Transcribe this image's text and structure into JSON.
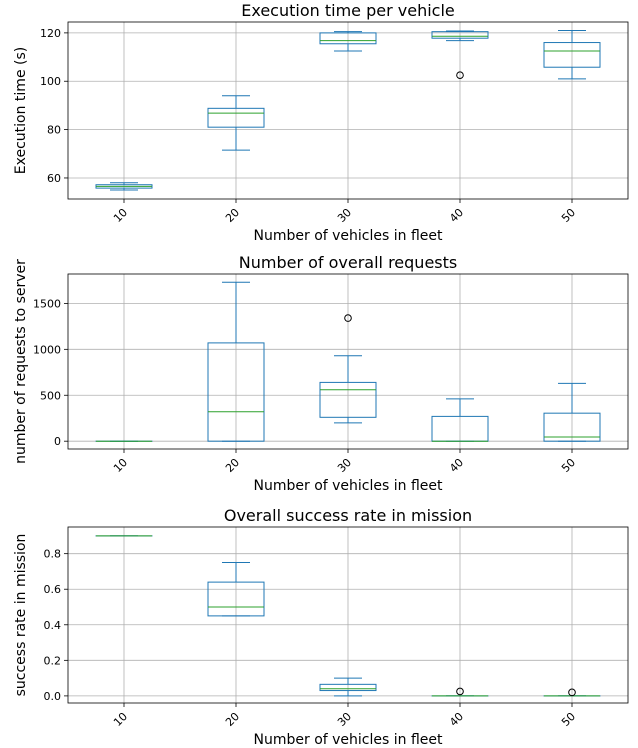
{
  "chart_data": [
    {
      "type": "box",
      "title": "Execution time per vehicle",
      "xlabel": "Number of vehicles in fleet",
      "ylabel": "Execution time (s)",
      "ylim": [
        51.3,
        124.5
      ],
      "yticks": [
        60,
        80,
        100,
        120
      ],
      "yticklabels": [
        "60",
        "80",
        "100",
        "120"
      ],
      "categories": [
        "10",
        "20",
        "30",
        "40",
        "50"
      ],
      "grid": true,
      "boxes": [
        {
          "whislo": 55.0,
          "q1": 55.8,
          "med": 56.5,
          "q3": 57.2,
          "whishi": 58.0,
          "fliers": []
        },
        {
          "whislo": 71.5,
          "q1": 81.0,
          "med": 86.8,
          "q3": 88.8,
          "whishi": 94.0,
          "fliers": []
        },
        {
          "whislo": 112.5,
          "q1": 115.5,
          "med": 116.8,
          "q3": 120.0,
          "whishi": 120.5,
          "fliers": []
        },
        {
          "whislo": 116.8,
          "q1": 117.8,
          "med": 118.6,
          "q3": 120.5,
          "whishi": 120.8,
          "fliers": [
            102.5
          ]
        },
        {
          "whislo": 101.0,
          "q1": 105.8,
          "med": 112.5,
          "q3": 116.0,
          "whishi": 121.0,
          "fliers": []
        }
      ]
    },
    {
      "type": "box",
      "title": "Number of overall requests",
      "xlabel": "Number of vehicles in fleet",
      "ylabel": "number of requests to server",
      "ylim": [
        -85,
        1820
      ],
      "yticks": [
        0,
        500,
        1000,
        1500
      ],
      "yticklabels": [
        "0",
        "500",
        "1000",
        "1500"
      ],
      "categories": [
        "10",
        "20",
        "30",
        "40",
        "50"
      ],
      "grid": true,
      "boxes": [
        {
          "whislo": 0,
          "q1": 0,
          "med": 0,
          "q3": 0,
          "whishi": 0,
          "fliers": []
        },
        {
          "whislo": 0,
          "q1": 0,
          "med": 320,
          "q3": 1070,
          "whishi": 1730,
          "fliers": []
        },
        {
          "whislo": 200,
          "q1": 260,
          "med": 560,
          "q3": 640,
          "whishi": 930,
          "fliers": [
            1340
          ]
        },
        {
          "whislo": 0,
          "q1": 0,
          "med": 0,
          "q3": 270,
          "whishi": 460,
          "fliers": []
        },
        {
          "whislo": 0,
          "q1": 0,
          "med": 45,
          "q3": 305,
          "whishi": 630,
          "fliers": []
        }
      ]
    },
    {
      "type": "box",
      "title": "Overall success rate in mission",
      "xlabel": "Number of vehicles in fleet",
      "ylabel": "success rate in mission",
      "ylim": [
        -0.04,
        0.95
      ],
      "yticks": [
        0.0,
        0.2,
        0.4,
        0.6,
        0.8
      ],
      "yticklabels": [
        "0.0",
        "0.2",
        "0.4",
        "0.6",
        "0.8"
      ],
      "categories": [
        "10",
        "20",
        "30",
        "40",
        "50"
      ],
      "grid": true,
      "boxes": [
        {
          "whislo": 0.9,
          "q1": 0.9,
          "med": 0.9,
          "q3": 0.9,
          "whishi": 0.9,
          "fliers": []
        },
        {
          "whislo": 0.45,
          "q1": 0.45,
          "med": 0.5,
          "q3": 0.64,
          "whishi": 0.75,
          "fliers": []
        },
        {
          "whislo": 0.0,
          "q1": 0.03,
          "med": 0.04,
          "q3": 0.065,
          "whishi": 0.1,
          "fliers": []
        },
        {
          "whislo": 0.0,
          "q1": 0.0,
          "med": 0.0,
          "q3": 0.0,
          "whishi": 0.0,
          "fliers": [
            0.025
          ]
        },
        {
          "whislo": 0.0,
          "q1": 0.0,
          "med": 0.0,
          "q3": 0.0,
          "whishi": 0.0,
          "fliers": [
            0.02
          ]
        }
      ]
    }
  ]
}
